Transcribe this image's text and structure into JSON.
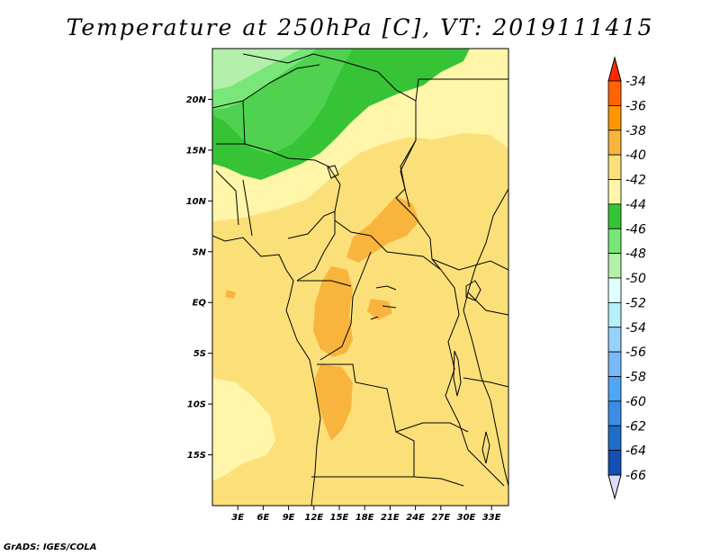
{
  "title": "Temperature at 250hPa [C], VT: 2019111415",
  "credit": "GrADS: IGES/COLA",
  "map": {
    "region": "Central Africa",
    "lon_range": [
      0,
      35
    ],
    "lat_range": [
      -20,
      25
    ],
    "lat_ticks": [
      {
        "value": 20,
        "label": "20N"
      },
      {
        "value": 15,
        "label": "15N"
      },
      {
        "value": 10,
        "label": "10N"
      },
      {
        "value": 5,
        "label": "5N"
      },
      {
        "value": 0,
        "label": "EQ"
      },
      {
        "value": -5,
        "label": "5S"
      },
      {
        "value": -10,
        "label": "10S"
      },
      {
        "value": -15,
        "label": "15S"
      }
    ],
    "lon_ticks": [
      {
        "value": 3,
        "label": "3E"
      },
      {
        "value": 6,
        "label": "6E"
      },
      {
        "value": 9,
        "label": "9E"
      },
      {
        "value": 12,
        "label": "12E"
      },
      {
        "value": 15,
        "label": "15E"
      },
      {
        "value": 18,
        "label": "18E"
      },
      {
        "value": 21,
        "label": "21E"
      },
      {
        "value": 24,
        "label": "24E"
      },
      {
        "value": 27,
        "label": "27E"
      },
      {
        "value": 30,
        "label": "30E"
      },
      {
        "value": 33,
        "label": "33E"
      }
    ]
  },
  "colors": {
    "c_50": "#b4f0aa",
    "c_48": "#78e678",
    "c_46": "#50d250",
    "c_44": "#36c436",
    "c_42": "#fff6aa",
    "c_40": "#fbe07a",
    "c_38": "#f8b43c"
  },
  "colorbar": {
    "levels": [
      "-34",
      "-36",
      "-38",
      "-40",
      "-42",
      "-44",
      "-46",
      "-48",
      "-50",
      "-52",
      "-54",
      "-56",
      "-58",
      "-60",
      "-62",
      "-64",
      "-66"
    ],
    "colors": [
      "#ff2800",
      "#ff6400",
      "#ff9600",
      "#f8b43c",
      "#fbe07a",
      "#fff6aa",
      "#36c436",
      "#78e678",
      "#b4f0aa",
      "#e1ffff",
      "#b4f0fa",
      "#96d2fa",
      "#78b9fa",
      "#50a5f5",
      "#3c8ce6",
      "#1e6ec8",
      "#1450b4",
      "#0a1e78"
    ],
    "top_arrow_color": "#ff2800",
    "bottom_arrow_color": "#dcdcfa"
  }
}
